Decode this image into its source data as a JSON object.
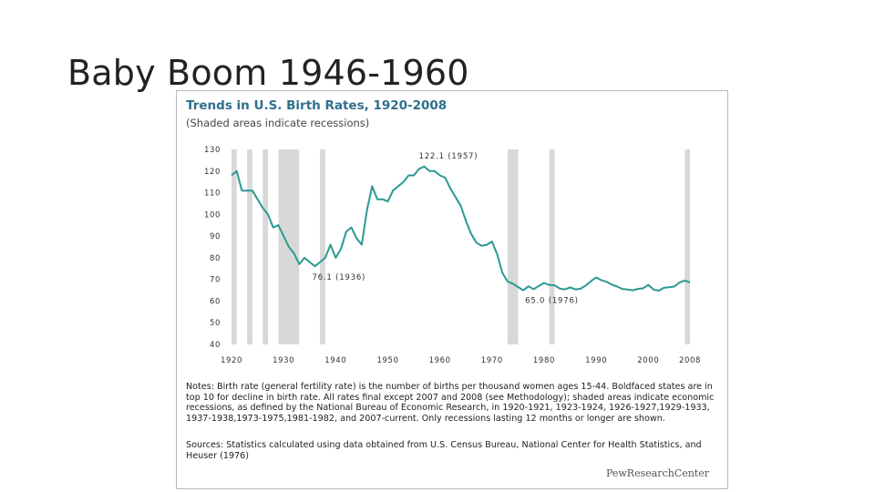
{
  "slide": {
    "title": "Baby Boom 1946-1960"
  },
  "figure": {
    "notes": "Notes: Birth rate (general fertility rate) is the number of births per thousand women ages 15-44. Boldfaced states are in top 10 for decline in birth rate. All rates final except 2007 and 2008 (see Methodology); shaded areas indicate economic recessions, as defined by the National Bureau of Economic Research, in 1920-1921, 1923-1924, 1926-1927,1929-1933, 1937-1938,1973-1975,1981-1982, and 2007-current. Only recessions lasting 12 months or longer are shown.",
    "sources": "Sources: Statistics calculated using data obtained from U.S. Census Bureau, National Center for Health Statistics, and Heuser (1976)",
    "brand": "PewResearchCenter"
  },
  "chart_data": {
    "type": "line",
    "title": "Trends in U.S. Birth Rates, 1920-2008",
    "subtitle": "(Shaded areas indicate recessions)",
    "xlabel": "",
    "ylabel": "",
    "xlim": [
      1920,
      2008
    ],
    "ylim": [
      40,
      130
    ],
    "xticks": [
      1920,
      1930,
      1940,
      1950,
      1960,
      1970,
      1980,
      1990,
      2000,
      2008
    ],
    "yticks": [
      130,
      120,
      110,
      100,
      90,
      80,
      70,
      60,
      50,
      40
    ],
    "line_color": "#2a9a92",
    "recession_color": "#d8d8d8",
    "recessions": [
      [
        1920,
        1921
      ],
      [
        1923,
        1924
      ],
      [
        1926,
        1927
      ],
      [
        1929,
        1933
      ],
      [
        1937,
        1938
      ],
      [
        1973,
        1975
      ],
      [
        1981,
        1982
      ],
      [
        2007,
        2008
      ]
    ],
    "series": [
      {
        "name": "Birth rate",
        "x": [
          1920,
          1921,
          1922,
          1923,
          1924,
          1925,
          1926,
          1927,
          1928,
          1929,
          1930,
          1931,
          1932,
          1933,
          1934,
          1935,
          1936,
          1937,
          1938,
          1939,
          1940,
          1941,
          1942,
          1943,
          1944,
          1945,
          1946,
          1947,
          1948,
          1949,
          1950,
          1951,
          1952,
          1953,
          1954,
          1955,
          1956,
          1957,
          1958,
          1959,
          1960,
          1961,
          1962,
          1963,
          1964,
          1965,
          1966,
          1967,
          1968,
          1969,
          1970,
          1971,
          1972,
          1973,
          1974,
          1975,
          1976,
          1977,
          1978,
          1979,
          1980,
          1981,
          1982,
          1983,
          1984,
          1985,
          1986,
          1987,
          1988,
          1989,
          1990,
          1991,
          1992,
          1993,
          1994,
          1995,
          1996,
          1997,
          1998,
          1999,
          2000,
          2001,
          2002,
          2003,
          2004,
          2005,
          2006,
          2007,
          2008
        ],
        "y": [
          118,
          120,
          111,
          111,
          111,
          107,
          103,
          100,
          94,
          95,
          90,
          85,
          82,
          77,
          80,
          78,
          76.1,
          78,
          80,
          86,
          80,
          84,
          92,
          94,
          89,
          86,
          102,
          113,
          107,
          107,
          106,
          111,
          113,
          115,
          118,
          118,
          121,
          122.1,
          120,
          120,
          118,
          117,
          112,
          108,
          104,
          97,
          91,
          87,
          85.5,
          86,
          87.5,
          81.5,
          73,
          69,
          68,
          66.5,
          65.0,
          66.8,
          65.5,
          67,
          68.4,
          67.4,
          67.3,
          65.8,
          65.4,
          66.3,
          65.4,
          65.7,
          67.2,
          69.2,
          70.9,
          69.6,
          68.9,
          67.6,
          66.7,
          65.6,
          65.3,
          65,
          65.6,
          65.9,
          67.5,
          65.3,
          64.8,
          66.1,
          66.4,
          66.7,
          68.6,
          69.5,
          68.6
        ]
      }
    ],
    "annotations": [
      {
        "label": "122.1 (1957)",
        "x": 1957,
        "y": 122.1
      },
      {
        "label": "76.1 (1936)",
        "x": 1936,
        "y": 76.1
      },
      {
        "label": "65.0 (1976)",
        "x": 1976,
        "y": 65.0
      }
    ]
  }
}
